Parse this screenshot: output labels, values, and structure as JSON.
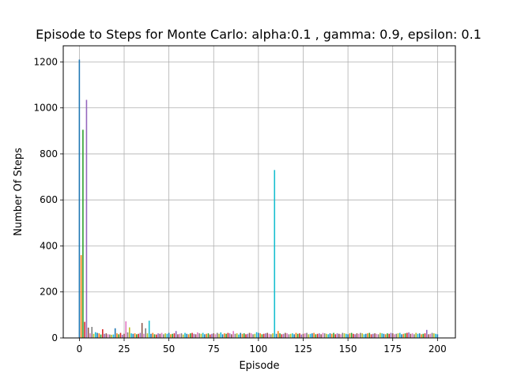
{
  "chart_data": {
    "type": "bar",
    "title": "Episode to Steps for Monte Carlo: alpha:0.1 , gamma: 0.9, epsilon: 0.1",
    "xlabel": "Episode",
    "ylabel": "Number Of Steps",
    "xlim": [
      -9,
      210
    ],
    "ylim": [
      0,
      1270
    ],
    "xticks": [
      0,
      25,
      50,
      75,
      100,
      125,
      150,
      175,
      200
    ],
    "yticks": [
      0,
      200,
      400,
      600,
      800,
      1000,
      1200
    ],
    "grid": true,
    "legend": "none",
    "palette": [
      "#1f77b4",
      "#ff7f0e",
      "#2ca02c",
      "#d62728",
      "#9467bd",
      "#8c564b",
      "#e377c2",
      "#7f7f7f",
      "#bcbd22",
      "#17becf"
    ],
    "x": [
      0,
      1,
      2,
      3,
      4,
      5,
      6,
      7,
      8,
      9,
      10,
      11,
      12,
      13,
      14,
      15,
      16,
      17,
      18,
      19,
      20,
      21,
      22,
      23,
      24,
      25,
      26,
      27,
      28,
      29,
      30,
      31,
      32,
      33,
      34,
      35,
      36,
      37,
      38,
      39,
      40,
      41,
      42,
      43,
      44,
      45,
      46,
      47,
      48,
      49,
      50,
      51,
      52,
      53,
      54,
      55,
      56,
      57,
      58,
      59,
      60,
      61,
      62,
      63,
      64,
      65,
      66,
      67,
      68,
      69,
      70,
      71,
      72,
      73,
      74,
      75,
      76,
      77,
      78,
      79,
      80,
      81,
      82,
      83,
      84,
      85,
      86,
      87,
      88,
      89,
      90,
      91,
      92,
      93,
      94,
      95,
      96,
      97,
      98,
      99,
      100,
      101,
      102,
      103,
      104,
      105,
      106,
      107,
      108,
      109,
      110,
      111,
      112,
      113,
      114,
      115,
      116,
      117,
      118,
      119,
      120,
      121,
      122,
      123,
      124,
      125,
      126,
      127,
      128,
      129,
      130,
      131,
      132,
      133,
      134,
      135,
      136,
      137,
      138,
      139,
      140,
      141,
      142,
      143,
      144,
      145,
      146,
      147,
      148,
      149,
      150,
      151,
      152,
      153,
      154,
      155,
      156,
      157,
      158,
      159,
      160,
      161,
      162,
      163,
      164,
      165,
      166,
      167,
      168,
      169,
      170,
      171,
      172,
      173,
      174,
      175,
      176,
      177,
      178,
      179,
      180,
      181,
      182,
      183,
      184,
      185,
      186,
      187,
      188,
      189,
      190,
      191,
      192,
      193,
      194,
      195,
      196,
      197,
      198,
      199,
      200
    ],
    "values": [
      1210,
      360,
      905,
      70,
      1035,
      45,
      20,
      48,
      18,
      25,
      22,
      20,
      15,
      38,
      18,
      20,
      16,
      15,
      14,
      15,
      42,
      20,
      16,
      22,
      14,
      18,
      72,
      24,
      46,
      20,
      18,
      20,
      16,
      18,
      22,
      65,
      18,
      42,
      20,
      75,
      18,
      22,
      16,
      15,
      20,
      18,
      22,
      16,
      20,
      18,
      22,
      16,
      18,
      20,
      30,
      16,
      18,
      20,
      15,
      22,
      18,
      16,
      20,
      22,
      18,
      16,
      24,
      20,
      18,
      22,
      16,
      18,
      20,
      15,
      18,
      20,
      16,
      22,
      18,
      24,
      16,
      20,
      18,
      22,
      20,
      16,
      30,
      18,
      20,
      15,
      22,
      18,
      20,
      16,
      18,
      22,
      20,
      16,
      18,
      25,
      22,
      20,
      16,
      18,
      20,
      22,
      18,
      16,
      20,
      730,
      18,
      30,
      20,
      16,
      18,
      22,
      20,
      16,
      18,
      20,
      16,
      22,
      18,
      20,
      15,
      18,
      20,
      22,
      16,
      18,
      20,
      22,
      16,
      18,
      20,
      16,
      22,
      20,
      18,
      16,
      20,
      18,
      22,
      16,
      20,
      18,
      16,
      22,
      20,
      18,
      16,
      20,
      22,
      18,
      16,
      20,
      18,
      22,
      20,
      16,
      18,
      20,
      22,
      16,
      18,
      20,
      18,
      16,
      22,
      20,
      18,
      16,
      20,
      18,
      22,
      20,
      16,
      18,
      20,
      22,
      16,
      18,
      20,
      22,
      24,
      18,
      20,
      16,
      22,
      18,
      20,
      16,
      18,
      20,
      35,
      16,
      18,
      22,
      20,
      18,
      16
    ]
  }
}
